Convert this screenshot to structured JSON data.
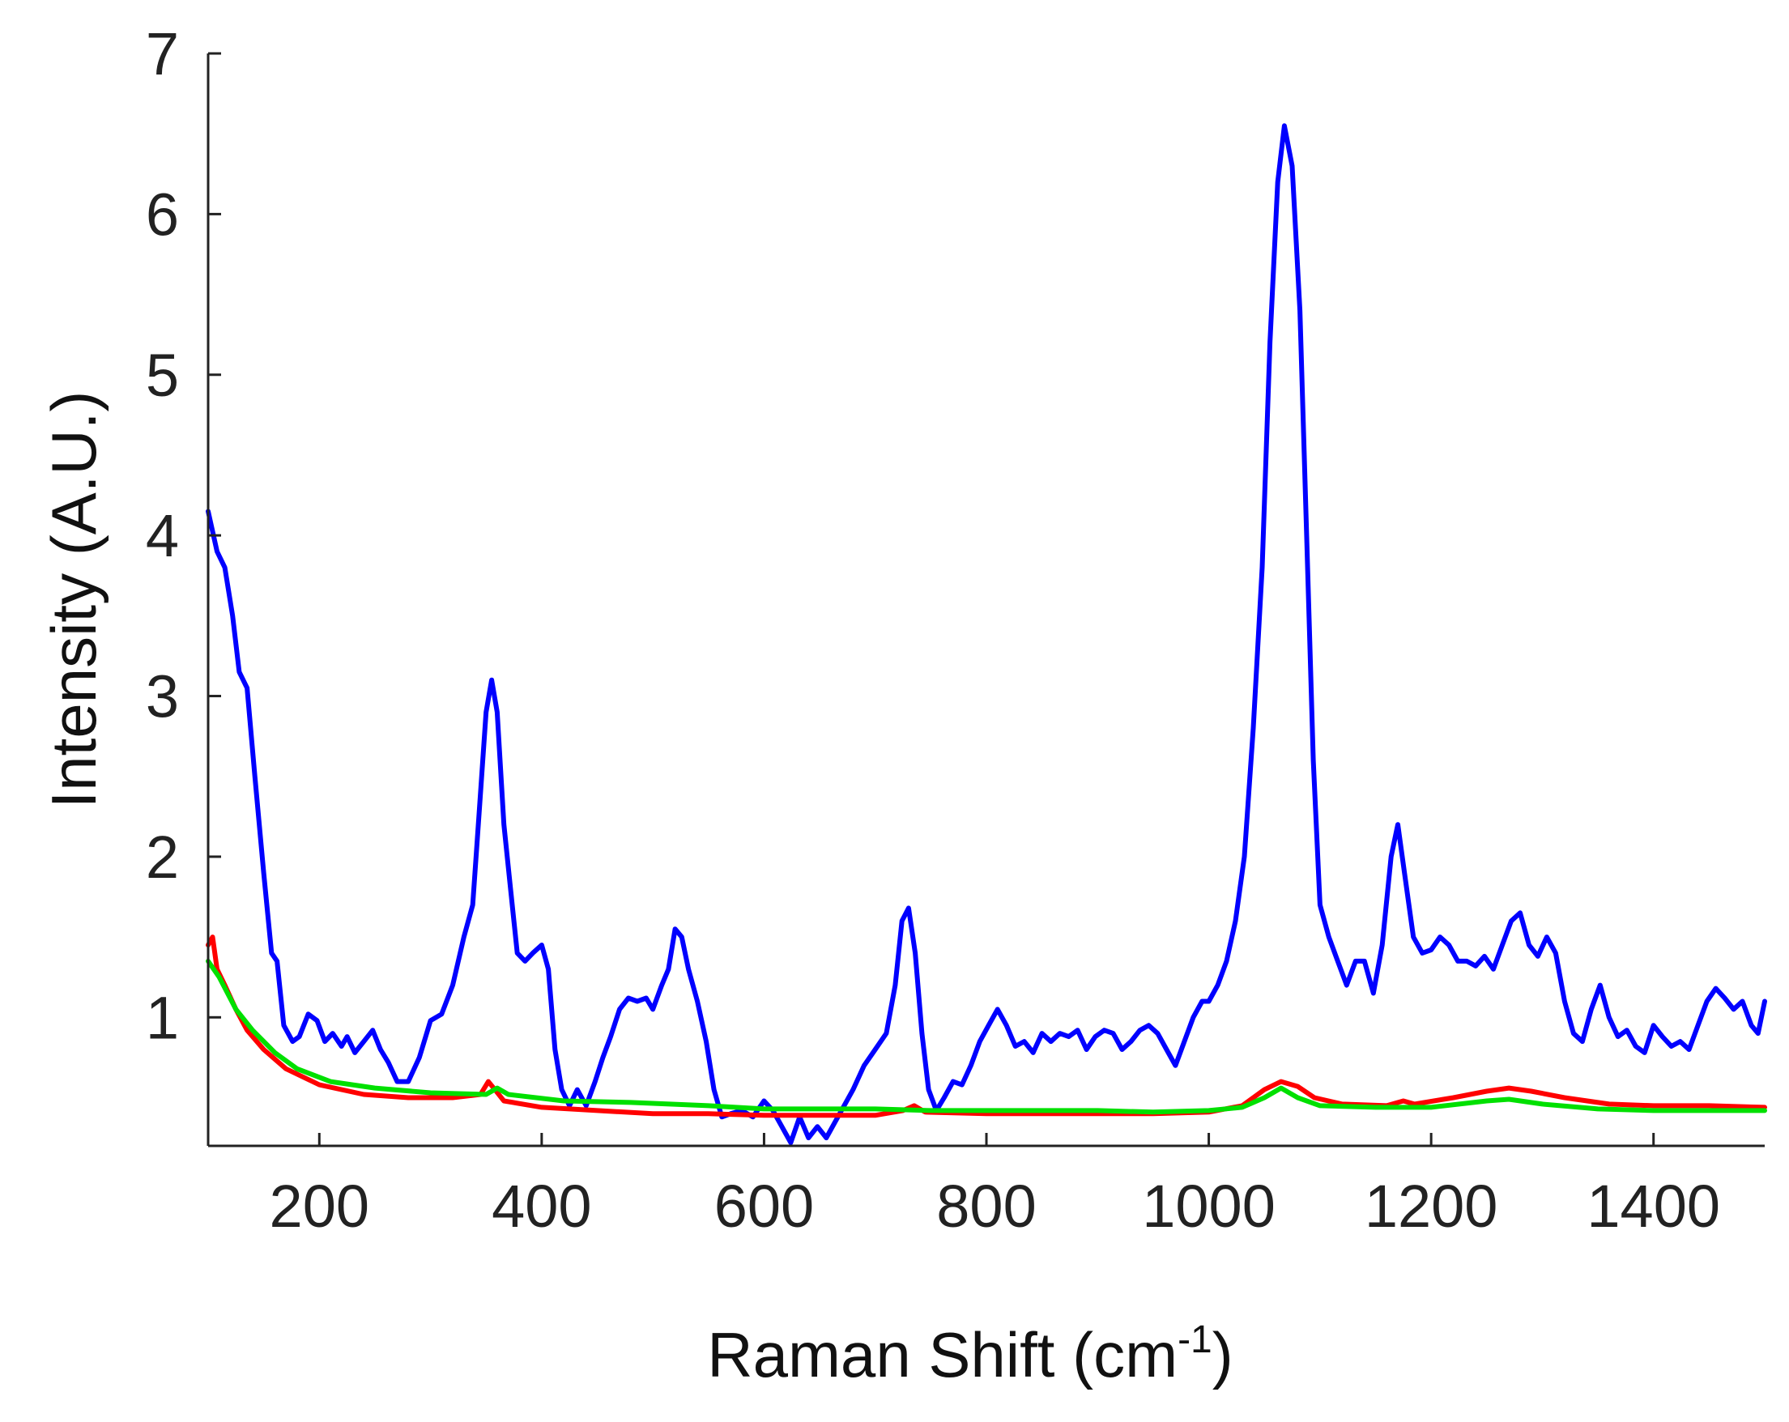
{
  "chart_data": {
    "type": "line",
    "title": "",
    "xlabel": "Raman Shift (cm",
    "xlabel_superscript": "-1",
    "xlabel_suffix": ")",
    "ylabel": "Intensity (A.U.)",
    "xlim": [
      100,
      1500
    ],
    "ylim": [
      0.2,
      7
    ],
    "xticks": [
      200,
      400,
      600,
      800,
      1000,
      1200,
      1400
    ],
    "yticks": [
      1,
      2,
      3,
      4,
      5,
      6,
      7
    ],
    "grid": false,
    "legend": "none",
    "series": [
      {
        "color": "#0000ff",
        "points": [
          [
            100,
            4.15
          ],
          [
            108,
            3.9
          ],
          [
            115,
            3.8
          ],
          [
            122,
            3.5
          ],
          [
            128,
            3.15
          ],
          [
            135,
            3.05
          ],
          [
            142,
            2.5
          ],
          [
            150,
            1.9
          ],
          [
            157,
            1.4
          ],
          [
            162,
            1.35
          ],
          [
            168,
            0.95
          ],
          [
            176,
            0.85
          ],
          [
            182,
            0.88
          ],
          [
            190,
            1.02
          ],
          [
            198,
            0.98
          ],
          [
            205,
            0.85
          ],
          [
            212,
            0.9
          ],
          [
            220,
            0.82
          ],
          [
            225,
            0.88
          ],
          [
            232,
            0.78
          ],
          [
            240,
            0.85
          ],
          [
            248,
            0.92
          ],
          [
            255,
            0.8
          ],
          [
            262,
            0.72
          ],
          [
            270,
            0.6
          ],
          [
            280,
            0.6
          ],
          [
            290,
            0.75
          ],
          [
            300,
            0.98
          ],
          [
            310,
            1.02
          ],
          [
            320,
            1.2
          ],
          [
            330,
            1.5
          ],
          [
            338,
            1.7
          ],
          [
            344,
            2.3
          ],
          [
            350,
            2.9
          ],
          [
            355,
            3.1
          ],
          [
            360,
            2.9
          ],
          [
            366,
            2.2
          ],
          [
            372,
            1.8
          ],
          [
            378,
            1.4
          ],
          [
            385,
            1.35
          ],
          [
            392,
            1.4
          ],
          [
            400,
            1.45
          ],
          [
            406,
            1.3
          ],
          [
            412,
            0.8
          ],
          [
            418,
            0.55
          ],
          [
            425,
            0.45
          ],
          [
            432,
            0.55
          ],
          [
            440,
            0.45
          ],
          [
            448,
            0.6
          ],
          [
            455,
            0.75
          ],
          [
            462,
            0.88
          ],
          [
            470,
            1.05
          ],
          [
            478,
            1.12
          ],
          [
            486,
            1.1
          ],
          [
            494,
            1.12
          ],
          [
            500,
            1.05
          ],
          [
            508,
            1.2
          ],
          [
            514,
            1.3
          ],
          [
            520,
            1.55
          ],
          [
            526,
            1.5
          ],
          [
            532,
            1.3
          ],
          [
            540,
            1.1
          ],
          [
            548,
            0.85
          ],
          [
            555,
            0.55
          ],
          [
            562,
            0.38
          ],
          [
            570,
            0.4
          ],
          [
            580,
            0.42
          ],
          [
            590,
            0.38
          ],
          [
            600,
            0.48
          ],
          [
            608,
            0.42
          ],
          [
            616,
            0.32
          ],
          [
            624,
            0.22
          ],
          [
            632,
            0.38
          ],
          [
            640,
            0.25
          ],
          [
            648,
            0.32
          ],
          [
            656,
            0.25
          ],
          [
            664,
            0.35
          ],
          [
            672,
            0.45
          ],
          [
            680,
            0.55
          ],
          [
            690,
            0.7
          ],
          [
            700,
            0.8
          ],
          [
            710,
            0.9
          ],
          [
            718,
            1.2
          ],
          [
            724,
            1.6
          ],
          [
            730,
            1.68
          ],
          [
            736,
            1.4
          ],
          [
            742,
            0.9
          ],
          [
            748,
            0.55
          ],
          [
            755,
            0.42
          ],
          [
            762,
            0.5
          ],
          [
            770,
            0.6
          ],
          [
            778,
            0.58
          ],
          [
            786,
            0.7
          ],
          [
            794,
            0.85
          ],
          [
            802,
            0.95
          ],
          [
            810,
            1.05
          ],
          [
            818,
            0.95
          ],
          [
            826,
            0.82
          ],
          [
            834,
            0.85
          ],
          [
            842,
            0.78
          ],
          [
            850,
            0.9
          ],
          [
            858,
            0.85
          ],
          [
            866,
            0.9
          ],
          [
            874,
            0.88
          ],
          [
            882,
            0.92
          ],
          [
            890,
            0.8
          ],
          [
            898,
            0.88
          ],
          [
            906,
            0.92
          ],
          [
            914,
            0.9
          ],
          [
            922,
            0.8
          ],
          [
            930,
            0.85
          ],
          [
            938,
            0.92
          ],
          [
            946,
            0.95
          ],
          [
            954,
            0.9
          ],
          [
            962,
            0.8
          ],
          [
            970,
            0.7
          ],
          [
            978,
            0.85
          ],
          [
            986,
            1.0
          ],
          [
            994,
            1.1
          ],
          [
            1000,
            1.1
          ],
          [
            1008,
            1.2
          ],
          [
            1016,
            1.35
          ],
          [
            1024,
            1.6
          ],
          [
            1032,
            2.0
          ],
          [
            1040,
            2.8
          ],
          [
            1048,
            3.8
          ],
          [
            1055,
            5.2
          ],
          [
            1062,
            6.2
          ],
          [
            1068,
            6.55
          ],
          [
            1075,
            6.3
          ],
          [
            1082,
            5.4
          ],
          [
            1088,
            4.0
          ],
          [
            1094,
            2.6
          ],
          [
            1100,
            1.7
          ],
          [
            1108,
            1.5
          ],
          [
            1116,
            1.35
          ],
          [
            1124,
            1.2
          ],
          [
            1132,
            1.35
          ],
          [
            1140,
            1.35
          ],
          [
            1148,
            1.15
          ],
          [
            1156,
            1.45
          ],
          [
            1164,
            2.0
          ],
          [
            1170,
            2.2
          ],
          [
            1176,
            1.9
          ],
          [
            1184,
            1.5
          ],
          [
            1192,
            1.4
          ],
          [
            1200,
            1.42
          ],
          [
            1208,
            1.5
          ],
          [
            1216,
            1.45
          ],
          [
            1224,
            1.35
          ],
          [
            1232,
            1.35
          ],
          [
            1240,
            1.32
          ],
          [
            1248,
            1.38
          ],
          [
            1256,
            1.3
          ],
          [
            1264,
            1.45
          ],
          [
            1272,
            1.6
          ],
          [
            1280,
            1.65
          ],
          [
            1288,
            1.45
          ],
          [
            1296,
            1.38
          ],
          [
            1304,
            1.5
          ],
          [
            1312,
            1.4
          ],
          [
            1320,
            1.1
          ],
          [
            1328,
            0.9
          ],
          [
            1336,
            0.85
          ],
          [
            1344,
            1.05
          ],
          [
            1352,
            1.2
          ],
          [
            1360,
            1.0
          ],
          [
            1368,
            0.88
          ],
          [
            1376,
            0.92
          ],
          [
            1384,
            0.82
          ],
          [
            1392,
            0.78
          ],
          [
            1400,
            0.95
          ],
          [
            1408,
            0.88
          ],
          [
            1416,
            0.82
          ],
          [
            1424,
            0.85
          ],
          [
            1432,
            0.8
          ],
          [
            1440,
            0.95
          ],
          [
            1448,
            1.1
          ],
          [
            1456,
            1.18
          ],
          [
            1464,
            1.12
          ],
          [
            1472,
            1.05
          ],
          [
            1480,
            1.1
          ],
          [
            1488,
            0.95
          ],
          [
            1494,
            0.9
          ],
          [
            1500,
            1.1
          ]
        ]
      },
      {
        "color": "#ff0000",
        "points": [
          [
            100,
            1.45
          ],
          [
            104,
            1.5
          ],
          [
            108,
            1.3
          ],
          [
            115,
            1.2
          ],
          [
            125,
            1.05
          ],
          [
            135,
            0.92
          ],
          [
            150,
            0.8
          ],
          [
            170,
            0.68
          ],
          [
            200,
            0.58
          ],
          [
            240,
            0.52
          ],
          [
            280,
            0.5
          ],
          [
            320,
            0.5
          ],
          [
            345,
            0.52
          ],
          [
            352,
            0.6
          ],
          [
            358,
            0.55
          ],
          [
            366,
            0.48
          ],
          [
            400,
            0.44
          ],
          [
            450,
            0.42
          ],
          [
            500,
            0.4
          ],
          [
            550,
            0.4
          ],
          [
            600,
            0.39
          ],
          [
            650,
            0.39
          ],
          [
            700,
            0.39
          ],
          [
            725,
            0.42
          ],
          [
            735,
            0.45
          ],
          [
            745,
            0.41
          ],
          [
            800,
            0.4
          ],
          [
            850,
            0.4
          ],
          [
            900,
            0.4
          ],
          [
            950,
            0.4
          ],
          [
            1000,
            0.41
          ],
          [
            1030,
            0.45
          ],
          [
            1050,
            0.55
          ],
          [
            1065,
            0.6
          ],
          [
            1080,
            0.57
          ],
          [
            1095,
            0.5
          ],
          [
            1120,
            0.46
          ],
          [
            1160,
            0.45
          ],
          [
            1175,
            0.48
          ],
          [
            1185,
            0.46
          ],
          [
            1220,
            0.5
          ],
          [
            1250,
            0.54
          ],
          [
            1270,
            0.56
          ],
          [
            1290,
            0.54
          ],
          [
            1320,
            0.5
          ],
          [
            1360,
            0.46
          ],
          [
            1400,
            0.45
          ],
          [
            1450,
            0.45
          ],
          [
            1500,
            0.44
          ]
        ]
      },
      {
        "color": "#00e000",
        "points": [
          [
            100,
            1.35
          ],
          [
            110,
            1.25
          ],
          [
            125,
            1.05
          ],
          [
            140,
            0.92
          ],
          [
            160,
            0.78
          ],
          [
            180,
            0.68
          ],
          [
            210,
            0.6
          ],
          [
            250,
            0.56
          ],
          [
            300,
            0.53
          ],
          [
            350,
            0.52
          ],
          [
            360,
            0.56
          ],
          [
            370,
            0.52
          ],
          [
            420,
            0.48
          ],
          [
            480,
            0.47
          ],
          [
            550,
            0.45
          ],
          [
            600,
            0.43
          ],
          [
            650,
            0.43
          ],
          [
            700,
            0.43
          ],
          [
            750,
            0.42
          ],
          [
            800,
            0.42
          ],
          [
            850,
            0.42
          ],
          [
            900,
            0.42
          ],
          [
            950,
            0.41
          ],
          [
            1000,
            0.42
          ],
          [
            1030,
            0.44
          ],
          [
            1050,
            0.5
          ],
          [
            1065,
            0.56
          ],
          [
            1080,
            0.5
          ],
          [
            1100,
            0.45
          ],
          [
            1150,
            0.44
          ],
          [
            1200,
            0.44
          ],
          [
            1250,
            0.48
          ],
          [
            1270,
            0.49
          ],
          [
            1300,
            0.46
          ],
          [
            1350,
            0.43
          ],
          [
            1400,
            0.42
          ],
          [
            1450,
            0.42
          ],
          [
            1500,
            0.42
          ]
        ]
      }
    ]
  }
}
